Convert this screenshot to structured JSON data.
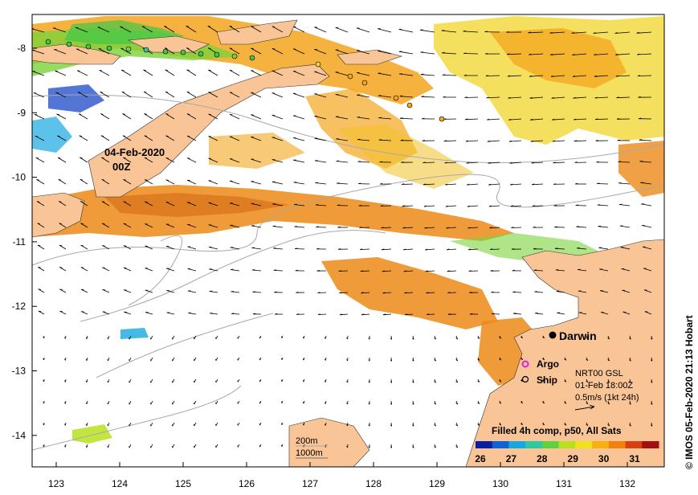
{
  "map": {
    "date_label_line1": "04-Feb-2020",
    "date_label_line2": "00Z",
    "credit": "© IMOS 05-Feb-2020 21:13 Hobart",
    "x_ticks": [
      "123",
      "124",
      "125",
      "126",
      "127",
      "128",
      "129",
      "130",
      "131",
      "132"
    ],
    "y_ticks": [
      "-8",
      "-9",
      "-10",
      "-11",
      "-12",
      "-13",
      "-14"
    ],
    "places": [
      {
        "name": "Darwin"
      }
    ],
    "legend_markers": [
      {
        "label": "Argo",
        "color": "#e020e0"
      },
      {
        "label": "Ship",
        "color": "#000000"
      }
    ],
    "current_info": {
      "line1": "NRT00 GSL",
      "line2": "01-Feb 18:00Z",
      "line3": "0.5m/s (1kt 24h)"
    },
    "contour_legend": {
      "line1": "200m",
      "line2": "1000m"
    },
    "colorbar": {
      "title": "Filled 4h comp, p50, All Sats",
      "ticks": [
        "26",
        "27",
        "28",
        "29",
        "30",
        "31"
      ],
      "colors": [
        "#0a1fa0",
        "#1060d8",
        "#18a8e0",
        "#30c8a0",
        "#60d040",
        "#b8e020",
        "#f0e020",
        "#f8b010",
        "#f08010",
        "#d84010",
        "#a01010"
      ]
    },
    "colors": {
      "land": "#f9c496",
      "ocean": "#ffffff",
      "contour": "#a8a8a8",
      "sst_warm": "#f4a51c",
      "sst_orange": "#ec8a16",
      "sst_yellow": "#f2d42a",
      "sst_green": "#7cd23a",
      "sst_blue": "#1a48c8"
    }
  }
}
